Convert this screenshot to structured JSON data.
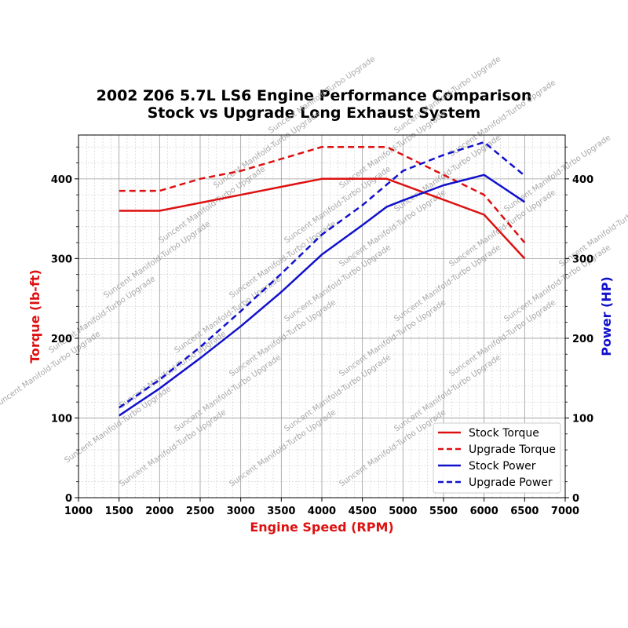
{
  "chart_data": {
    "type": "line",
    "title": "2002 Z06 5.7L LS6 Engine Performance Comparison",
    "subtitle": "Stock vs Upgrade Long Exhaust System",
    "xlabel": "Engine Speed (RPM)",
    "ylabel_left": "Torque (lb-ft)",
    "ylabel_right": "Power (HP)",
    "xlim": [
      1000,
      7000
    ],
    "ylim_left": [
      0,
      455
    ],
    "ylim_right": [
      0,
      455
    ],
    "xticks": [
      1000,
      1500,
      2000,
      2500,
      3000,
      3500,
      4000,
      4500,
      5000,
      5500,
      6000,
      6500,
      7000
    ],
    "yticks_left": [
      0,
      100,
      200,
      300,
      400
    ],
    "yticks_right": [
      0,
      100,
      200,
      300,
      400
    ],
    "grid": true,
    "legend_position": "bottom-right",
    "watermark": "Suncent Manifold-Turbo Upgrade",
    "colors": {
      "torque": "#dd1111",
      "power": "#1111cc",
      "grid_major": "#9a9a9a",
      "grid_minor": "#cccccc"
    },
    "series": [
      {
        "name": "Stock Torque",
        "axis": "left",
        "color": "#dd1111",
        "dash": "solid",
        "x": [
          1500,
          2000,
          3000,
          4000,
          4800,
          6000,
          6500
        ],
        "y": [
          360,
          360,
          380,
          400,
          400,
          355,
          300
        ]
      },
      {
        "name": "Upgrade Torque",
        "axis": "left",
        "color": "#dd1111",
        "dash": "dashed",
        "x": [
          1500,
          2000,
          2500,
          3000,
          4000,
          4800,
          6000,
          6500
        ],
        "y": [
          385,
          385,
          400,
          410,
          440,
          440,
          380,
          320
        ]
      },
      {
        "name": "Stock Power",
        "axis": "right",
        "color": "#1111cc",
        "dash": "solid",
        "x": [
          1500,
          2000,
          2500,
          3000,
          3500,
          4000,
          4500,
          4800,
          5000,
          5500,
          6000,
          6500
        ],
        "y": [
          103,
          137,
          175,
          215,
          258,
          305,
          342,
          365,
          373,
          392,
          405,
          371
        ]
      },
      {
        "name": "Upgrade Power",
        "axis": "right",
        "color": "#1111cc",
        "dash": "dashed",
        "x": [
          1500,
          2000,
          2500,
          3000,
          3500,
          4000,
          4500,
          5000,
          5500,
          6000,
          6500
        ],
        "y": [
          113,
          148,
          189,
          234,
          281,
          330,
          367,
          410,
          430,
          446,
          404
        ]
      }
    ]
  }
}
